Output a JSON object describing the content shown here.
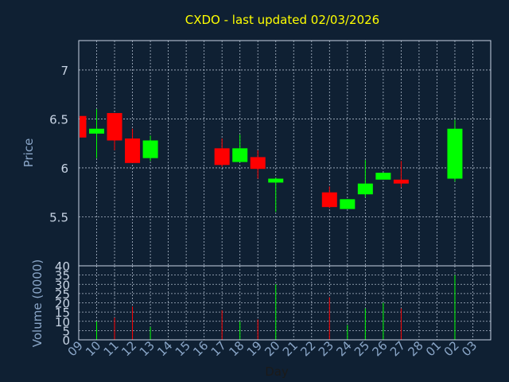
{
  "chart_data": {
    "type": "candlestick",
    "title": "CXDO - last updated 02/03/2026",
    "ylabel_price": "Price",
    "ylabel_volume": "Volume (0000)",
    "xlabel": "Day",
    "price_ylim": [
      5.0,
      7.3
    ],
    "price_yticks": [
      5.5,
      6,
      6.5,
      7
    ],
    "price_ytick_labels": [
      "5.5",
      "6",
      "6.5",
      "7"
    ],
    "volume_ylim": [
      0,
      40
    ],
    "volume_yticks": [
      0,
      5,
      10,
      15,
      20,
      25,
      30,
      35,
      40
    ],
    "volume_ytick_labels": [
      "0",
      "5",
      "10",
      "15",
      "20",
      "25",
      "30",
      "35",
      "40"
    ],
    "x_tick_labels": [
      "09",
      "10",
      "11",
      "12",
      "13",
      "14",
      "15",
      "16",
      "17",
      "18",
      "19",
      "20",
      "21",
      "22",
      "23",
      "24",
      "25",
      "26",
      "27",
      "28",
      "01",
      "02",
      "03"
    ],
    "grid": true,
    "colors": {
      "background": "#0f2033",
      "up": "#00ff00",
      "down": "#ff0000",
      "title": "#ffff00",
      "axis_text": "#8aa6c8",
      "tick_text": "#c8d4e4",
      "frame": "#c8d4e4",
      "grid": "#c8d4e4"
    },
    "candles": [
      {
        "x": 0,
        "open": 6.53,
        "high": 6.53,
        "low": 6.31,
        "close": 6.31,
        "volume": 0
      },
      {
        "x": 1,
        "open": 6.35,
        "high": 6.6,
        "low": 6.1,
        "close": 6.4,
        "volume": 10
      },
      {
        "x": 2,
        "open": 6.56,
        "high": 6.56,
        "low": 6.18,
        "close": 6.28,
        "volume": 12
      },
      {
        "x": 3,
        "open": 6.3,
        "high": 6.4,
        "low": 6.05,
        "close": 6.05,
        "volume": 18
      },
      {
        "x": 4,
        "open": 6.1,
        "high": 6.33,
        "low": 6.07,
        "close": 6.28,
        "volume": 7
      },
      {
        "x": 8,
        "open": 6.2,
        "high": 6.3,
        "low": 6.01,
        "close": 6.03,
        "volume": 16
      },
      {
        "x": 9,
        "open": 6.06,
        "high": 6.34,
        "low": 6.06,
        "close": 6.2,
        "volume": 10
      },
      {
        "x": 10,
        "open": 6.11,
        "high": 6.18,
        "low": 5.89,
        "close": 5.99,
        "volume": 11
      },
      {
        "x": 11,
        "open": 5.85,
        "high": 5.9,
        "low": 5.55,
        "close": 5.89,
        "volume": 30
      },
      {
        "x": 14,
        "open": 5.75,
        "high": 5.81,
        "low": 5.59,
        "close": 5.6,
        "volume": 23
      },
      {
        "x": 15,
        "open": 5.58,
        "high": 5.68,
        "low": 5.58,
        "close": 5.68,
        "volume": 8
      },
      {
        "x": 16,
        "open": 5.73,
        "high": 6.08,
        "low": 5.7,
        "close": 5.84,
        "volume": 17
      },
      {
        "x": 17,
        "open": 5.88,
        "high": 5.95,
        "low": 5.88,
        "close": 5.95,
        "volume": 20
      },
      {
        "x": 18,
        "open": 5.88,
        "high": 6.07,
        "low": 5.8,
        "close": 5.84,
        "volume": 17
      },
      {
        "x": 21,
        "open": 5.89,
        "high": 6.49,
        "low": 5.86,
        "close": 6.4,
        "volume": 35
      }
    ]
  }
}
